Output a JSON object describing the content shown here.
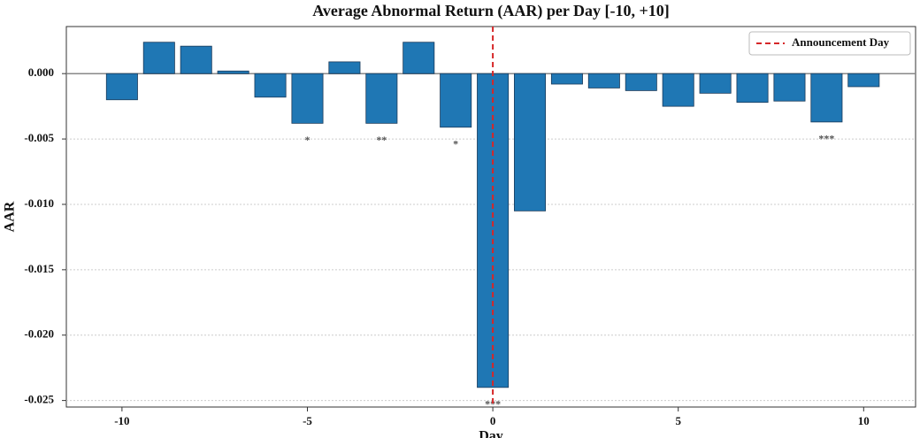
{
  "chart_data": {
    "type": "bar",
    "title": "Average Abnormal Return (AAR) per Day [-10, +10]",
    "x_label": "Day",
    "y_label": "AAR",
    "x": [
      -10,
      -9,
      -8,
      -7,
      -6,
      -5,
      -4,
      -3,
      -2,
      -1,
      0,
      1,
      2,
      3,
      4,
      5,
      6,
      7,
      8,
      9,
      10
    ],
    "values": [
      -0.002,
      0.0024,
      0.0021,
      0.0002,
      -0.0018,
      -0.0038,
      0.0009,
      -0.0038,
      0.0024,
      -0.0041,
      -0.024,
      -0.0105,
      -0.0008,
      -0.0011,
      -0.0013,
      -0.0025,
      -0.0015,
      -0.0022,
      -0.0021,
      -0.0037,
      -0.001
    ],
    "color": "#1f77b4",
    "annotations": [
      {
        "x": -5,
        "text": "*"
      },
      {
        "x": -3,
        "text": "**"
      },
      {
        "x": -1,
        "text": "*"
      },
      {
        "x": 0,
        "text": "***"
      },
      {
        "x": 9,
        "text": "***"
      }
    ],
    "vline": {
      "x": 0,
      "color": "#d62728",
      "label": "Announcement Day"
    },
    "xlim": [
      -11.5,
      11.4
    ],
    "xticks": [
      -10,
      -5,
      0,
      5,
      10
    ],
    "ylim": [
      -0.0255,
      0.0036
    ],
    "yticks": [
      {
        "value": 0,
        "label": "0.000"
      },
      {
        "value": -0.005,
        "label": "-0.005"
      },
      {
        "value": -0.01,
        "label": "-0.010"
      },
      {
        "value": -0.015,
        "label": "-0.015"
      },
      {
        "value": -0.02,
        "label": "-0.020"
      },
      {
        "value": -0.025,
        "label": "-0.025"
      }
    ],
    "grid": true,
    "legend": "upper right"
  }
}
